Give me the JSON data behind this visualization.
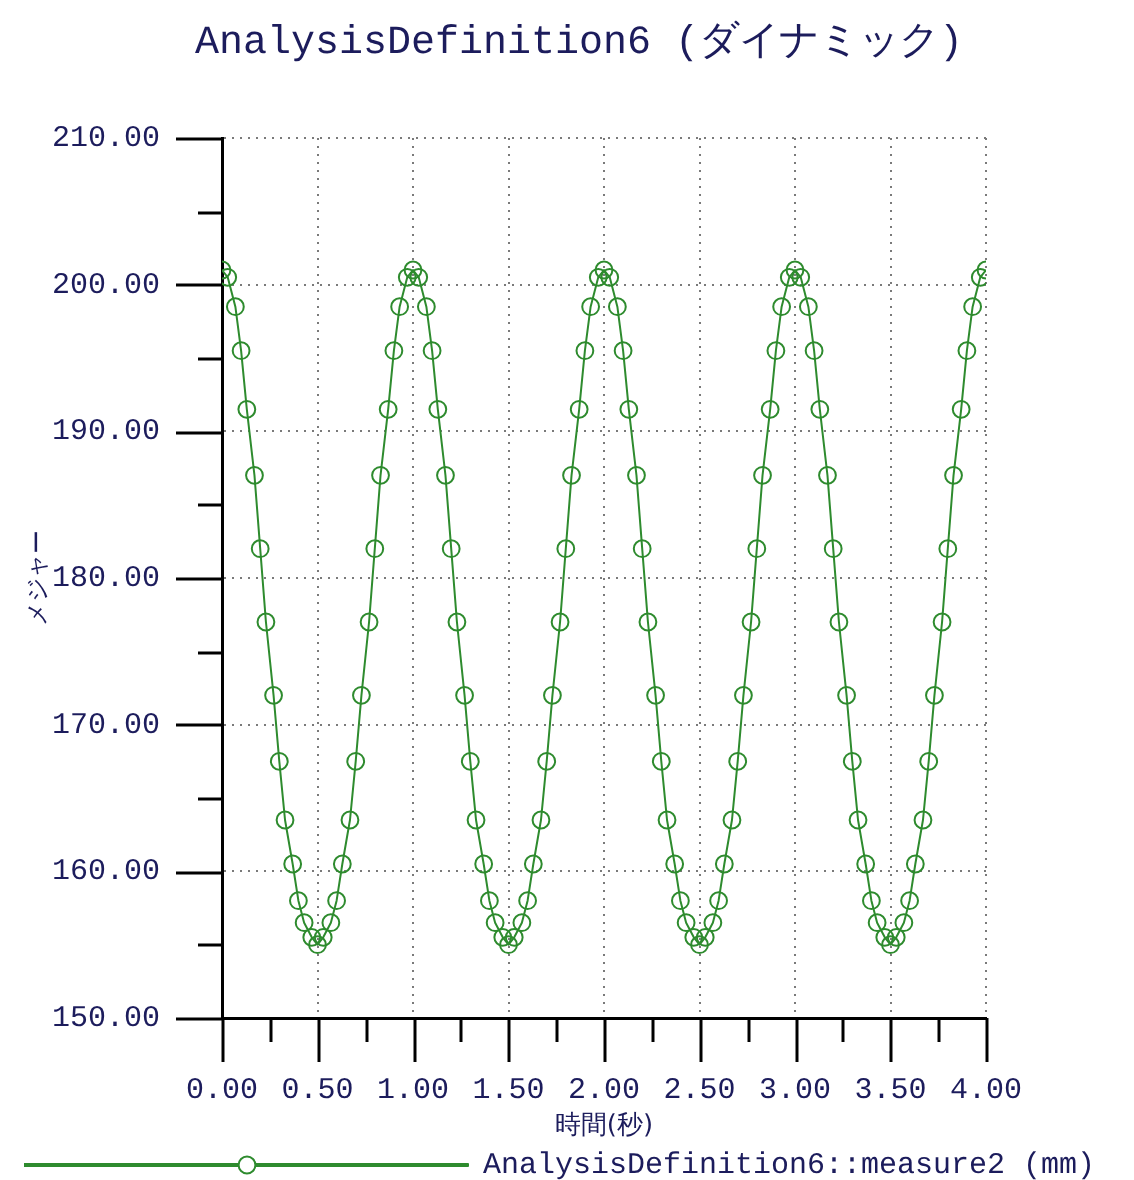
{
  "chart_data": {
    "type": "line",
    "title": "AnalysisDefinition6 (ダイナミック)",
    "xlabel": "時間(秒)",
    "ylabel": "メジャー",
    "xlim": [
      0,
      4
    ],
    "xticks": [
      {
        "value": 0,
        "label": "0.00"
      },
      {
        "value": 0.25,
        "label": null
      },
      {
        "value": 0.5,
        "label": "0.50"
      },
      {
        "value": 0.75,
        "label": null
      },
      {
        "value": 1,
        "label": "1.00"
      },
      {
        "value": 1.25,
        "label": null
      },
      {
        "value": 1.5,
        "label": "1.50"
      },
      {
        "value": 1.75,
        "label": null
      },
      {
        "value": 2,
        "label": "2.00"
      },
      {
        "value": 2.25,
        "label": null
      },
      {
        "value": 2.5,
        "label": "2.50"
      },
      {
        "value": 2.75,
        "label": null
      },
      {
        "value": 3,
        "label": "3.00"
      },
      {
        "value": 3.25,
        "label": null
      },
      {
        "value": 3.5,
        "label": "3.50"
      },
      {
        "value": 3.75,
        "label": null
      },
      {
        "value": 4,
        "label": "4.00"
      }
    ],
    "ylim": [
      150,
      210
    ],
    "yticks": [
      {
        "value": 150,
        "label": "150.00"
      },
      {
        "value": 155,
        "label": null
      },
      {
        "value": 160,
        "label": "160.00"
      },
      {
        "value": 165,
        "label": null
      },
      {
        "value": 170,
        "label": "170.00"
      },
      {
        "value": 175,
        "label": null
      },
      {
        "value": 180,
        "label": "180.00"
      },
      {
        "value": 185,
        "label": null
      },
      {
        "value": 190,
        "label": "190.00"
      },
      {
        "value": 195,
        "label": null
      },
      {
        "value": 200,
        "label": "200.00"
      },
      {
        "value": 205,
        "label": null
      },
      {
        "value": 210,
        "label": "210.00"
      }
    ],
    "grid": true,
    "legend": "bottom",
    "marker": "circle",
    "line_style": "solid",
    "x": [
      0,
      0.03,
      0.07,
      0.1,
      0.13,
      0.17,
      0.2,
      0.23,
      0.27,
      0.3,
      0.33,
      0.37,
      0.4,
      0.43,
      0.47,
      0.5,
      0.53,
      0.57,
      0.6,
      0.63,
      0.67,
      0.7,
      0.73,
      0.77,
      0.8,
      0.83,
      0.87,
      0.9,
      0.93,
      0.97,
      1,
      1.03,
      1.07,
      1.1,
      1.13,
      1.17,
      1.2,
      1.23,
      1.27,
      1.3,
      1.33,
      1.37,
      1.4,
      1.43,
      1.47,
      1.5,
      1.53,
      1.57,
      1.6,
      1.63,
      1.67,
      1.7,
      1.73,
      1.77,
      1.8,
      1.83,
      1.87,
      1.9,
      1.93,
      1.97,
      2,
      2.03,
      2.07,
      2.1,
      2.13,
      2.17,
      2.2,
      2.23,
      2.27,
      2.3,
      2.33,
      2.37,
      2.4,
      2.43,
      2.47,
      2.5,
      2.53,
      2.57,
      2.6,
      2.63,
      2.67,
      2.7,
      2.73,
      2.77,
      2.8,
      2.83,
      2.87,
      2.9,
      2.93,
      2.97,
      3,
      3.03,
      3.07,
      3.1,
      3.13,
      3.17,
      3.2,
      3.23,
      3.27,
      3.3,
      3.33,
      3.37,
      3.4,
      3.43,
      3.47,
      3.5,
      3.53,
      3.57,
      3.6,
      3.63,
      3.67,
      3.7,
      3.73,
      3.77,
      3.8,
      3.83,
      3.87,
      3.9,
      3.93,
      3.97,
      4
    ],
    "series": [
      {
        "name": "AnalysisDefinition6::measure2 (mm)",
        "color": "#2e8b2e",
        "values": [
          201,
          200.5,
          198.5,
          195.5,
          191.5,
          187,
          182,
          177,
          172,
          167.5,
          163.5,
          160.5,
          158,
          156.5,
          155.5,
          155,
          155.5,
          156.5,
          158,
          160.5,
          163.5,
          167.5,
          172,
          177,
          182,
          187,
          191.5,
          195.5,
          198.5,
          200.5,
          201,
          200.5,
          198.5,
          195.5,
          191.5,
          187,
          182,
          177,
          172,
          167.5,
          163.5,
          160.5,
          158,
          156.5,
          155.5,
          155,
          155.5,
          156.5,
          158,
          160.5,
          163.5,
          167.5,
          172,
          177,
          182,
          187,
          191.5,
          195.5,
          198.5,
          200.5,
          201,
          200.5,
          198.5,
          195.5,
          191.5,
          187,
          182,
          177,
          172,
          167.5,
          163.5,
          160.5,
          158,
          156.5,
          155.5,
          155,
          155.5,
          156.5,
          158,
          160.5,
          163.5,
          167.5,
          172,
          177,
          182,
          187,
          191.5,
          195.5,
          198.5,
          200.5,
          201,
          200.5,
          198.5,
          195.5,
          191.5,
          187,
          182,
          177,
          172,
          167.5,
          163.5,
          160.5,
          158,
          156.5,
          155.5,
          155,
          155.5,
          156.5,
          158,
          160.5,
          163.5,
          167.5,
          172,
          177,
          182,
          187,
          191.5,
          195.5,
          198.5,
          200.5,
          201
        ]
      }
    ]
  }
}
